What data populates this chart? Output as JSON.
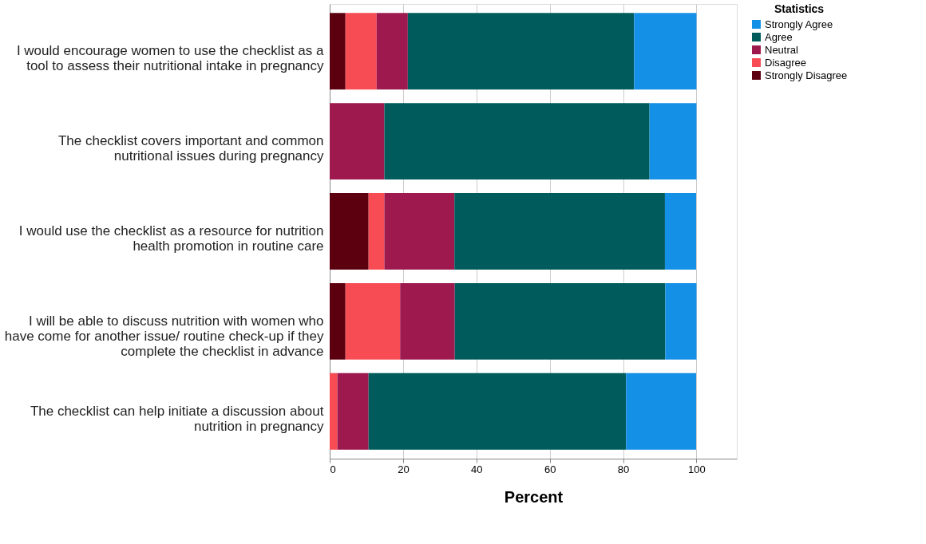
{
  "chart_data": {
    "type": "bar",
    "orientation": "horizontal",
    "stacked": true,
    "xlabel": "Percent",
    "legend_title": "Statistics",
    "legend": "top right",
    "grid": "x",
    "categories": [
      "I would encourage women to use the checklist as a\ntool to assess their nutritional intake in pregnancy",
      "The checklist covers important and common\nnutritional issues during pregnancy",
      "I would use the checklist as a resource for nutrition\nhealth promotion in routine care",
      "I will be able to discuss nutrition with women who\nhave come for another issue/ routine check-up if they\ncomplete the checklist in advance",
      "The checklist can help initiate a discussion about\nnutrition in pregnancy"
    ],
    "xlim": [
      0,
      111
    ],
    "xticks": [
      0,
      20,
      40,
      60,
      80,
      100
    ],
    "series": [
      {
        "name": "Strongly Disagree",
        "color": "#5c0010",
        "values": [
          4.3,
          null,
          10.6,
          4.3,
          null
        ]
      },
      {
        "name": "Disagree",
        "color": "#f84c55",
        "values": [
          8.5,
          null,
          4.3,
          14.9,
          2.1
        ]
      },
      {
        "name": "Neutral",
        "color": "#9e1a4e",
        "values": [
          8.5,
          14.9,
          19.1,
          14.9,
          8.5
        ]
      },
      {
        "name": "Agree",
        "color": "#005c5c",
        "values": [
          61.7,
          72.3,
          57.4,
          57.4,
          70.2
        ]
      },
      {
        "name": "Strongly Agree",
        "color": "#1490e6",
        "values": [
          17.0,
          12.8,
          8.5,
          8.5,
          19.1
        ]
      }
    ]
  }
}
